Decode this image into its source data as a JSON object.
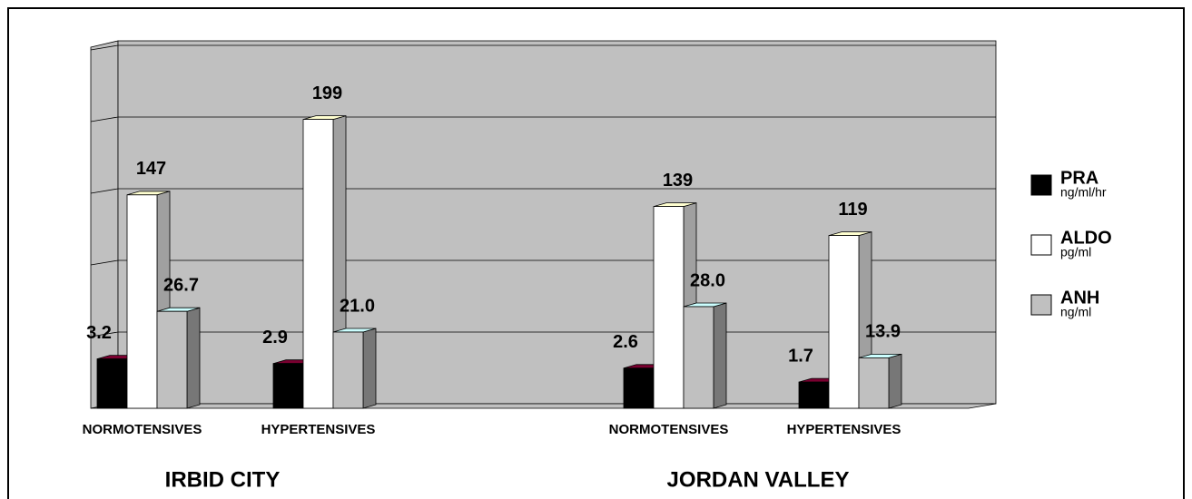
{
  "chart_data": {
    "type": "bar3d",
    "groups": [
      "IRBID CITY",
      "JORDAN VALLEY"
    ],
    "categories": [
      "NORMOTENSIVES",
      "HYPERTENSIVES",
      "NORMOTENSIVES",
      "HYPERTENSIVES"
    ],
    "series": [
      {
        "name": "PRA",
        "unit": "ng/ml/hr",
        "color": "#000000",
        "values": [
          3.2,
          2.9,
          2.6,
          1.7
        ]
      },
      {
        "name": "ALDO",
        "unit": "pg/ml",
        "color": "#ffffff",
        "values": [
          147,
          199,
          139,
          119
        ]
      },
      {
        "name": "ANH",
        "unit": "ng/ml",
        "color": "#c0c0c0",
        "values": [
          26.7,
          21.0,
          28.0,
          13.9
        ],
        "value_labels": [
          "26.7",
          "21.0",
          "28.0",
          "13.9"
        ]
      }
    ],
    "grid": true,
    "legend": "right"
  }
}
